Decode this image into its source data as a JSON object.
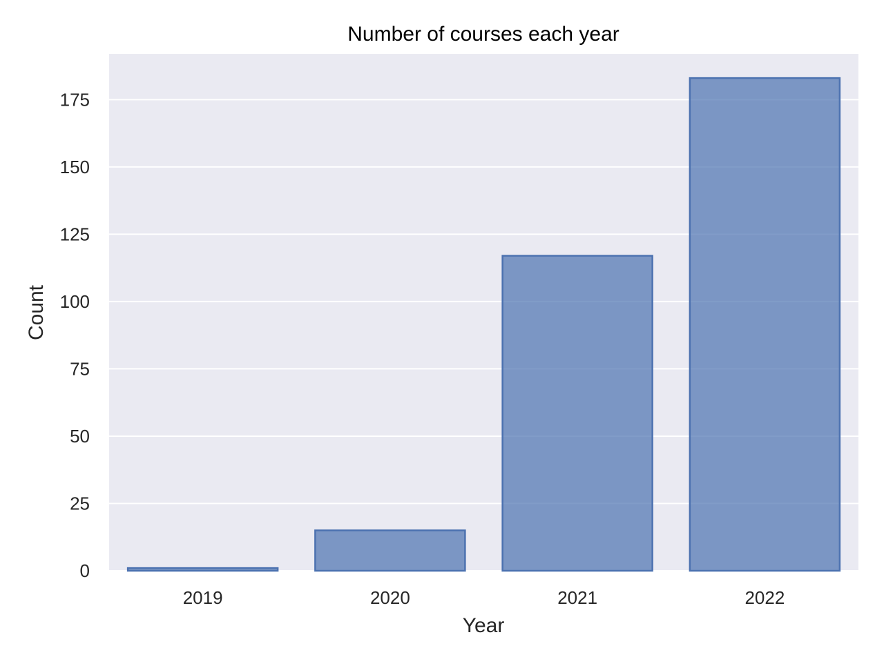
{
  "colors": {
    "plot_background": "#eaeaf2",
    "grid": "#ffffff",
    "bar_fill": "#4c72b0",
    "bar_fill_opacity": 0.7,
    "bar_edge": "#4c72b0"
  },
  "chart_data": {
    "type": "bar",
    "title": "Number of courses each year",
    "xlabel": "Year",
    "ylabel": "Count",
    "categories": [
      "2019",
      "2020",
      "2021",
      "2022"
    ],
    "values": [
      1,
      15,
      117,
      183
    ],
    "ylim": [
      0,
      192
    ],
    "yticks": [
      0,
      25,
      50,
      75,
      100,
      125,
      150,
      175
    ],
    "grid": true,
    "legend": "none"
  }
}
